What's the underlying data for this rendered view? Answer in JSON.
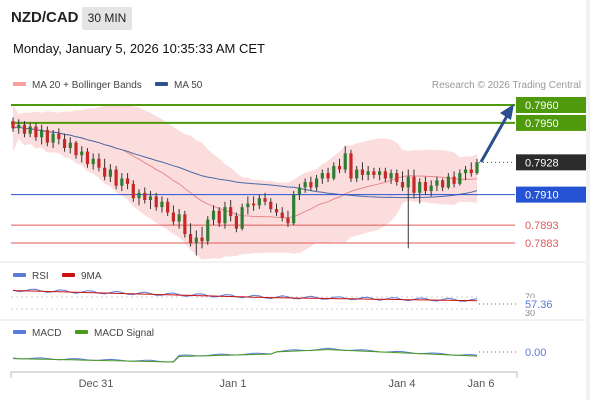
{
  "header": {
    "pair": "NZD/CAD",
    "timeframe": "30 MIN",
    "datetime": "Monday, January 5, 2026 10:35:33 AM CET"
  },
  "legend": {
    "ma20_bb": "MA 20 + Bollinger Bands",
    "ma50": "MA 50",
    "copyright": "Research © 2026 Trading Central",
    "rsi": "RSI",
    "rsi_ma": "9MA",
    "macd": "MACD",
    "macd_signal": "MACD Signal"
  },
  "colors": {
    "candle_up": "#2e7d32",
    "candle_down": "#c62828",
    "resistance": "#4f9a0c",
    "pivot": "#2553d3",
    "support": "#e05a5a",
    "bollinger_fill": "#fbd2d2",
    "ma20": "#e8898a",
    "ma50": "#4a6aa8",
    "current_price_box": "#2b2b2b",
    "arrow": "#2b4f8c",
    "rsi_line": "#5a7bd6",
    "rsi_ma_line": "#cc1111",
    "macd_line": "#5a7bd6",
    "macd_signal_line": "#4a9a1c"
  },
  "chart_data": {
    "type": "candlestick",
    "price_range": [
      0.787,
      0.797
    ],
    "current_price": 0.7928,
    "levels": [
      {
        "value": 0.796,
        "kind": "resistance",
        "label": "0.7960"
      },
      {
        "value": 0.795,
        "kind": "resistance",
        "label": "0.7950"
      },
      {
        "value": 0.791,
        "kind": "pivot",
        "label": "0.7910"
      },
      {
        "value": 0.7893,
        "kind": "support",
        "label": "0.7893"
      },
      {
        "value": 0.7883,
        "kind": "support",
        "label": "0.7883"
      }
    ],
    "current_label": "0.7928",
    "x_labels": [
      "Dec 31",
      "Jan 1",
      "Jan 4",
      "Jan 6"
    ],
    "ohlc": [
      [
        0.7951,
        0.7953,
        0.7945,
        0.7947
      ],
      [
        0.7947,
        0.7952,
        0.7944,
        0.7949
      ],
      [
        0.7949,
        0.7951,
        0.7942,
        0.7944
      ],
      [
        0.7944,
        0.795,
        0.7942,
        0.7948
      ],
      [
        0.7948,
        0.795,
        0.794,
        0.7942
      ],
      [
        0.7942,
        0.7949,
        0.7938,
        0.7946
      ],
      [
        0.7946,
        0.7948,
        0.7937,
        0.7939
      ],
      [
        0.7939,
        0.7946,
        0.7936,
        0.7944
      ],
      [
        0.7944,
        0.7947,
        0.7938,
        0.7941
      ],
      [
        0.7941,
        0.7944,
        0.7934,
        0.7936
      ],
      [
        0.7936,
        0.7942,
        0.7933,
        0.7939
      ],
      [
        0.7939,
        0.794,
        0.793,
        0.7932
      ],
      [
        0.7932,
        0.7937,
        0.7928,
        0.7934
      ],
      [
        0.7934,
        0.7936,
        0.7925,
        0.7927
      ],
      [
        0.7927,
        0.7933,
        0.7924,
        0.793
      ],
      [
        0.793,
        0.7933,
        0.7923,
        0.7925
      ],
      [
        0.7925,
        0.793,
        0.7918,
        0.792
      ],
      [
        0.792,
        0.7927,
        0.7917,
        0.7924
      ],
      [
        0.7924,
        0.7926,
        0.7913,
        0.7915
      ],
      [
        0.7915,
        0.7922,
        0.7912,
        0.7919
      ],
      [
        0.7919,
        0.7922,
        0.7913,
        0.7916
      ],
      [
        0.7916,
        0.7918,
        0.7906,
        0.7908
      ],
      [
        0.7908,
        0.7913,
        0.7904,
        0.7911
      ],
      [
        0.7911,
        0.7914,
        0.7905,
        0.7907
      ],
      [
        0.7907,
        0.7912,
        0.7902,
        0.7909
      ],
      [
        0.7909,
        0.7911,
        0.7901,
        0.7903
      ],
      [
        0.7903,
        0.7909,
        0.79,
        0.7906
      ],
      [
        0.7906,
        0.7908,
        0.7898,
        0.79
      ],
      [
        0.79,
        0.7904,
        0.7893,
        0.7895
      ],
      [
        0.7895,
        0.7902,
        0.7891,
        0.7899
      ],
      [
        0.7899,
        0.7901,
        0.7886,
        0.7888
      ],
      [
        0.7888,
        0.7894,
        0.7881,
        0.7883
      ],
      [
        0.7883,
        0.789,
        0.7876,
        0.7886
      ],
      [
        0.7886,
        0.7892,
        0.788,
        0.7884
      ],
      [
        0.7884,
        0.7898,
        0.7882,
        0.7896
      ],
      [
        0.7896,
        0.7904,
        0.7893,
        0.7901
      ],
      [
        0.7901,
        0.7903,
        0.7892,
        0.7894
      ],
      [
        0.7894,
        0.7906,
        0.7891,
        0.7903
      ],
      [
        0.7903,
        0.7907,
        0.7895,
        0.7898
      ],
      [
        0.7898,
        0.79,
        0.7889,
        0.7891
      ],
      [
        0.7891,
        0.7905,
        0.789,
        0.7903
      ],
      [
        0.7903,
        0.7909,
        0.7899,
        0.7905
      ],
      [
        0.7905,
        0.7909,
        0.7901,
        0.7904
      ],
      [
        0.7904,
        0.791,
        0.7902,
        0.7908
      ],
      [
        0.7908,
        0.7911,
        0.7904,
        0.7906
      ],
      [
        0.7906,
        0.7908,
        0.79,
        0.7902
      ],
      [
        0.7902,
        0.7905,
        0.7898,
        0.79
      ],
      [
        0.79,
        0.7903,
        0.7895,
        0.7897
      ],
      [
        0.7897,
        0.7901,
        0.7892,
        0.7894
      ],
      [
        0.7894,
        0.7912,
        0.7893,
        0.791
      ],
      [
        0.791,
        0.7916,
        0.7907,
        0.7914
      ],
      [
        0.7914,
        0.7919,
        0.7911,
        0.7917
      ],
      [
        0.7917,
        0.792,
        0.7912,
        0.7914
      ],
      [
        0.7914,
        0.7921,
        0.7912,
        0.7919
      ],
      [
        0.7919,
        0.7924,
        0.7916,
        0.7922
      ],
      [
        0.7922,
        0.7925,
        0.7917,
        0.7919
      ],
      [
        0.7919,
        0.7928,
        0.7918,
        0.7926
      ],
      [
        0.7926,
        0.793,
        0.7922,
        0.7924
      ],
      [
        0.7924,
        0.7937,
        0.7922,
        0.7933
      ],
      [
        0.7933,
        0.7935,
        0.7917,
        0.7919
      ],
      [
        0.7919,
        0.7926,
        0.7917,
        0.7924
      ],
      [
        0.7924,
        0.7928,
        0.7918,
        0.7921
      ],
      [
        0.7921,
        0.7926,
        0.7918,
        0.7923
      ],
      [
        0.7923,
        0.7925,
        0.7919,
        0.7921
      ],
      [
        0.7921,
        0.7925,
        0.7918,
        0.7923
      ],
      [
        0.7923,
        0.7925,
        0.7917,
        0.7919
      ],
      [
        0.7919,
        0.7924,
        0.7916,
        0.7922
      ],
      [
        0.7922,
        0.7924,
        0.7915,
        0.7917
      ],
      [
        0.7917,
        0.7923,
        0.7912,
        0.7914
      ],
      [
        0.7914,
        0.7924,
        0.788,
        0.792
      ],
      [
        0.792,
        0.7924,
        0.7908,
        0.7911
      ],
      [
        0.7911,
        0.7919,
        0.7905,
        0.7917
      ],
      [
        0.7917,
        0.792,
        0.791,
        0.7912
      ],
      [
        0.7912,
        0.7918,
        0.7909,
        0.7915
      ],
      [
        0.7915,
        0.792,
        0.7912,
        0.7918
      ],
      [
        0.7918,
        0.7919,
        0.7912,
        0.7914
      ],
      [
        0.7914,
        0.7922,
        0.7913,
        0.792
      ],
      [
        0.792,
        0.7923,
        0.7914,
        0.7916
      ],
      [
        0.7916,
        0.7924,
        0.7915,
        0.7922
      ],
      [
        0.7922,
        0.7926,
        0.7918,
        0.7924
      ],
      [
        0.7924,
        0.7928,
        0.792,
        0.7922
      ],
      [
        0.7922,
        0.793,
        0.7921,
        0.7928
      ]
    ],
    "rsi": {
      "value": 57.36,
      "label": "57.36",
      "tick_upper": "70",
      "tick_lower": "30"
    },
    "macd": {
      "value": 0.0,
      "label": "0.00"
    }
  }
}
